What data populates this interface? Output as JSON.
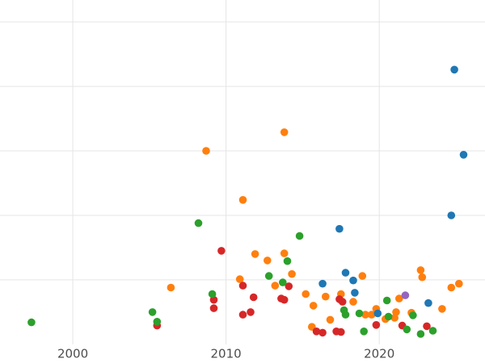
{
  "chart_data": {
    "type": "scatter",
    "title": "",
    "xlabel": "",
    "ylabel": "",
    "legend_position": "none",
    "grid": true,
    "x_tick_labels": [
      "2000",
      "2010",
      "2020"
    ],
    "x_tick_years": [
      2000,
      2010,
      2020
    ],
    "y_gridline_units": [
      1,
      2,
      3,
      4,
      5
    ],
    "axis": {
      "x_range_years": [
        1995.25,
        2026.9
      ],
      "y_range_units": [
        -0.29,
        5.34
      ],
      "y_tick_labels_visible": false
    },
    "colors": {
      "blue": "#1f77b4",
      "orange": "#ff7f0e",
      "green": "#2ca02c",
      "red": "#d62728",
      "purple": "#9467bd"
    },
    "marker_radius_px": 4.8,
    "series": [
      {
        "name": "orange",
        "color_key": "orange",
        "points": [
          [
            2006.4,
            0.88
          ],
          [
            2008.7,
            3.0
          ],
          [
            2011.1,
            2.24
          ],
          [
            2010.9,
            1.01
          ],
          [
            2011.9,
            1.4
          ],
          [
            2012.7,
            1.3
          ],
          [
            2013.2,
            0.91
          ],
          [
            2013.8,
            1.41
          ],
          [
            2014.3,
            1.09
          ],
          [
            2013.8,
            3.29
          ],
          [
            2015.2,
            0.78
          ],
          [
            2015.7,
            0.6
          ],
          [
            2015.6,
            0.27
          ],
          [
            2016.5,
            0.74
          ],
          [
            2016.8,
            0.38
          ],
          [
            2017.5,
            0.78
          ],
          [
            2018.9,
            1.06
          ],
          [
            2018.3,
            0.66
          ],
          [
            2019.1,
            0.46
          ],
          [
            2019.5,
            0.46
          ],
          [
            2019.8,
            0.55
          ],
          [
            2020.4,
            0.39
          ],
          [
            2021.1,
            0.5
          ],
          [
            2021.0,
            0.41
          ],
          [
            2022.1,
            0.49
          ],
          [
            2021.3,
            0.71
          ],
          [
            2022.7,
            1.15
          ],
          [
            2022.8,
            1.04
          ],
          [
            2024.1,
            0.55
          ],
          [
            2024.7,
            0.88
          ],
          [
            2025.2,
            0.94
          ]
        ]
      },
      {
        "name": "red",
        "color_key": "red",
        "points": [
          [
            2005.5,
            0.29
          ],
          [
            2009.7,
            1.45
          ],
          [
            2009.2,
            0.69
          ],
          [
            2009.2,
            0.56
          ],
          [
            2011.1,
            0.91
          ],
          [
            2011.6,
            0.5
          ],
          [
            2011.1,
            0.46
          ],
          [
            2011.8,
            0.73
          ],
          [
            2014.1,
            0.9
          ],
          [
            2013.6,
            0.71
          ],
          [
            2013.8,
            0.69
          ],
          [
            2015.9,
            0.2
          ],
          [
            2016.3,
            0.18
          ],
          [
            2017.2,
            0.2
          ],
          [
            2017.5,
            0.19
          ],
          [
            2017.4,
            0.7
          ],
          [
            2017.6,
            0.66
          ],
          [
            2019.8,
            0.3
          ],
          [
            2021.5,
            0.29
          ],
          [
            2023.1,
            0.28
          ]
        ]
      },
      {
        "name": "green",
        "color_key": "green",
        "points": [
          [
            1997.3,
            0.34
          ],
          [
            2005.2,
            0.5
          ],
          [
            2005.5,
            0.35
          ],
          [
            2008.2,
            1.88
          ],
          [
            2009.1,
            0.78
          ],
          [
            2012.8,
            1.06
          ],
          [
            2013.7,
            0.96
          ],
          [
            2014.0,
            1.29
          ],
          [
            2014.8,
            1.68
          ],
          [
            2017.7,
            0.53
          ],
          [
            2017.8,
            0.46
          ],
          [
            2018.7,
            0.48
          ],
          [
            2019.0,
            0.2
          ],
          [
            2020.6,
            0.43
          ],
          [
            2020.5,
            0.68
          ],
          [
            2021.8,
            0.23
          ],
          [
            2022.2,
            0.45
          ],
          [
            2022.7,
            0.16
          ],
          [
            2023.5,
            0.21
          ]
        ]
      },
      {
        "name": "blue",
        "color_key": "blue",
        "points": [
          [
            2016.3,
            0.94
          ],
          [
            2017.4,
            1.79
          ],
          [
            2017.8,
            1.11
          ],
          [
            2018.3,
            0.99
          ],
          [
            2018.4,
            0.8
          ],
          [
            2019.9,
            0.48
          ],
          [
            2023.2,
            0.64
          ],
          [
            2024.7,
            2.0
          ],
          [
            2024.9,
            4.26
          ],
          [
            2025.5,
            2.94
          ]
        ]
      },
      {
        "name": "purple",
        "color_key": "purple",
        "points": [
          [
            2021.7,
            0.76
          ]
        ]
      }
    ]
  },
  "styles": {
    "background": "#ffffff",
    "grid_color": "#e5e5e5",
    "tick_label_color": "#4d4d4d"
  }
}
